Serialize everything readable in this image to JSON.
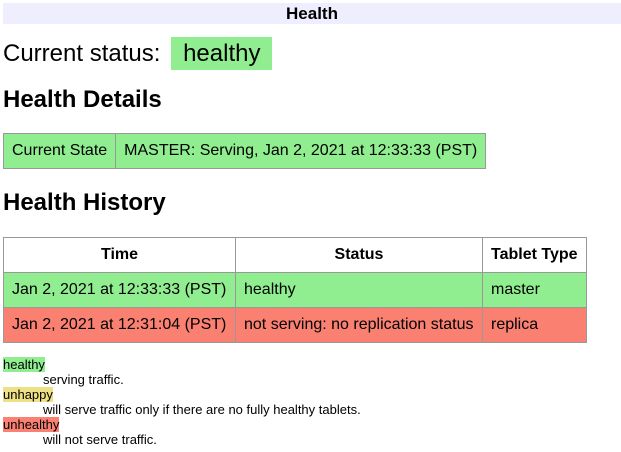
{
  "title": "Health",
  "current_status": {
    "label": "Current status:",
    "value": "healthy"
  },
  "details": {
    "heading": "Health Details",
    "label": "Current State",
    "value": "MASTER: Serving, Jan 2, 2021 at 12:33:33 (PST)"
  },
  "history": {
    "heading": "Health History",
    "columns": [
      "Time",
      "Status",
      "Tablet Type"
    ],
    "rows": [
      [
        "Jan 2, 2021 at 12:33:33 (PST)",
        "healthy",
        "master"
      ],
      [
        "Jan 2, 2021 at 12:31:04 (PST)",
        "not serving: no replication status",
        "replica"
      ]
    ]
  },
  "legend": [
    {
      "term": "healthy",
      "desc": "serving traffic.",
      "color": "#90ee90"
    },
    {
      "term": "unhappy",
      "desc": "will serve traffic only if there are no fully healthy tablets.",
      "color": "#eee084"
    },
    {
      "term": "unhealthy",
      "desc": "will not serve traffic.",
      "color": "#fa8072"
    }
  ]
}
